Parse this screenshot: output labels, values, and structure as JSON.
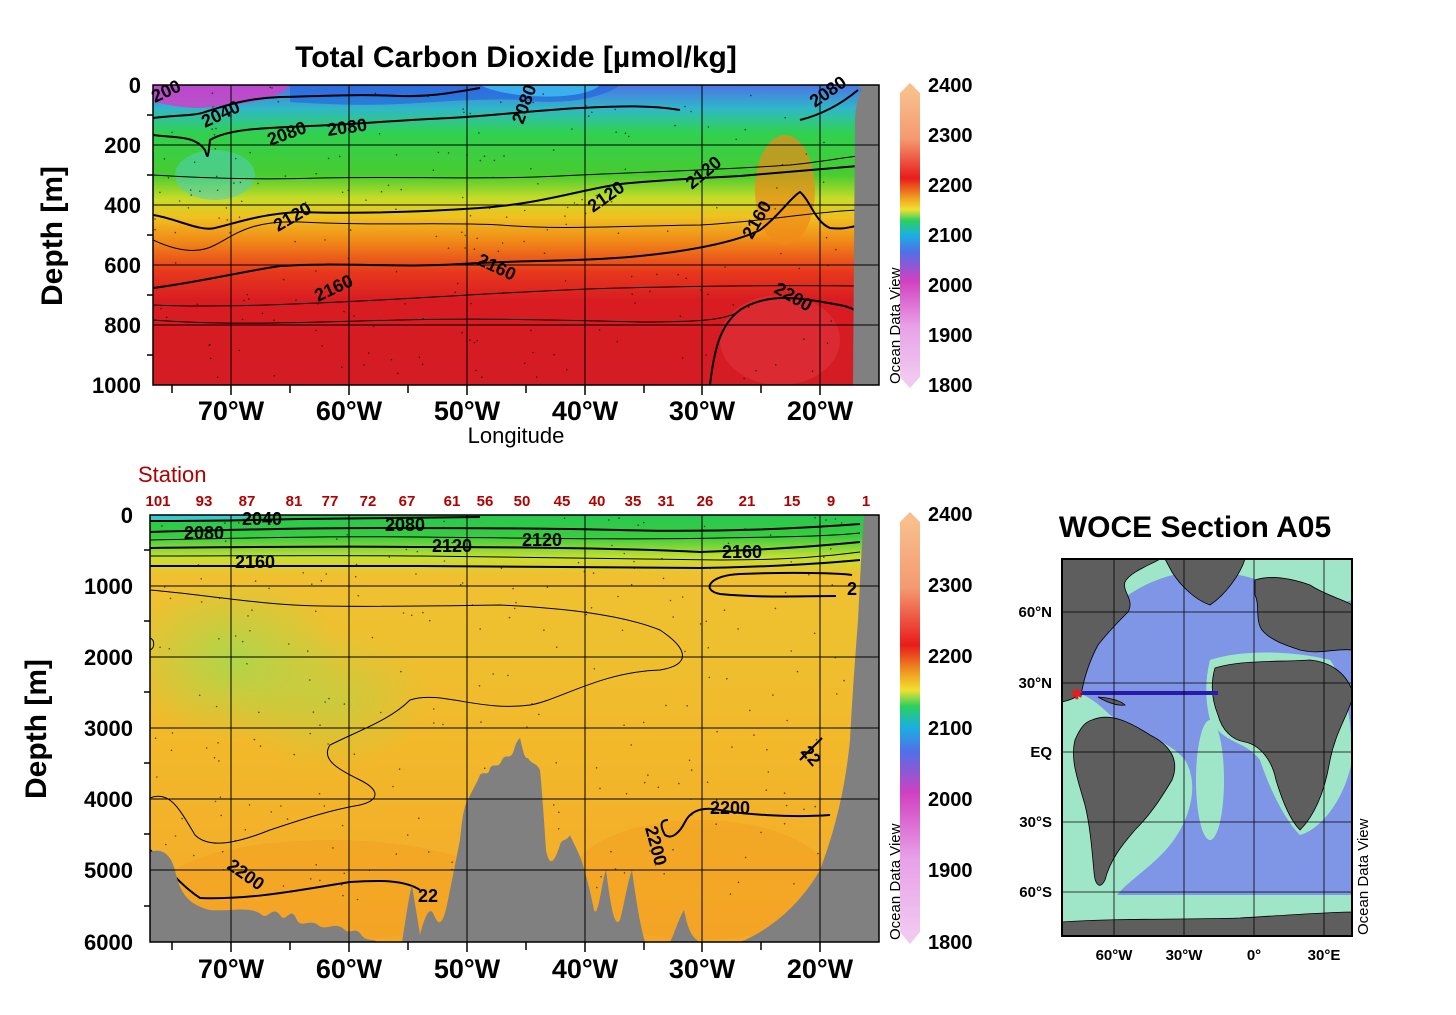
{
  "chart_data": [
    {
      "type": "heatmap",
      "title": "Total Carbon Dioxide [µmol/kg]",
      "xlabel": "Longitude",
      "ylabel": "Depth [m]",
      "x_ticks": [
        "70°W",
        "60°W",
        "50°W",
        "40°W",
        "30°W",
        "20°W"
      ],
      "y_ticks": [
        "0",
        "200",
        "400",
        "600",
        "800",
        "1000"
      ],
      "xlim": [
        -77.5,
        -15.5
      ],
      "ylim": [
        0,
        1000
      ],
      "colorbar": {
        "ticks": [
          "2400",
          "2300",
          "2200",
          "2100",
          "2000",
          "1900",
          "1800"
        ],
        "range": [
          1800,
          2400
        ],
        "label": "Ocean Data View"
      },
      "contours": [
        {
          "value": "2040",
          "depth": 100,
          "labels": [
            "2040"
          ]
        },
        {
          "value": "2080",
          "depth": 150,
          "labels": [
            "2080",
            "2080",
            "2080",
            "2080"
          ]
        },
        {
          "value": "2120",
          "depth": 320,
          "labels": [
            "2120",
            "2120",
            "2120"
          ]
        },
        {
          "value": "2160",
          "depth": 630,
          "labels": [
            "2160",
            "2160",
            "2160"
          ]
        },
        {
          "value": "2200",
          "depth": 720,
          "labels": [
            "2200"
          ]
        }
      ],
      "extra_labels": [
        "200"
      ]
    },
    {
      "type": "heatmap",
      "title": "",
      "xlabel": "",
      "ylabel": "Depth [m]",
      "x_ticks": [
        "70°W",
        "60°W",
        "50°W",
        "40°W",
        "30°W",
        "20°W"
      ],
      "y_ticks": [
        "0",
        "1000",
        "2000",
        "3000",
        "4000",
        "5000",
        "6000"
      ],
      "xlim": [
        -77.5,
        -15.5
      ],
      "ylim": [
        0,
        6000
      ],
      "station_label": "Station",
      "stations": [
        "101",
        "93",
        "87",
        "81",
        "77",
        "72",
        "67",
        "61",
        "56",
        "50",
        "45",
        "40",
        "35",
        "31",
        "26",
        "21",
        "15",
        "9",
        "1"
      ],
      "colorbar": {
        "ticks": [
          "2400",
          "2300",
          "2200",
          "2100",
          "2000",
          "1900",
          "1800"
        ],
        "range": [
          1800,
          2400
        ],
        "label": "Ocean Data View"
      },
      "contours": [
        {
          "value": "2040",
          "depth": 80,
          "labels": [
            "2040"
          ]
        },
        {
          "value": "2080",
          "depth": 200,
          "labels": [
            "2080",
            "2080"
          ]
        },
        {
          "value": "2120",
          "depth": 380,
          "labels": [
            "2120",
            "2120"
          ]
        },
        {
          "value": "2160",
          "depth": 620,
          "labels": [
            "2160",
            "2160"
          ]
        },
        {
          "value": "2200",
          "depth": 4500,
          "labels": [
            "2200",
            "2200",
            "2200",
            "22",
            "22",
            "2"
          ]
        }
      ]
    },
    {
      "type": "map",
      "title": "WOCE Section A05",
      "x_ticks": [
        "60°W",
        "30°W",
        "0°",
        "30°E"
      ],
      "y_ticks": [
        "60°N",
        "30°N",
        "EQ",
        "30°S",
        "60°S"
      ],
      "section_latitude": "24.5°N",
      "side_label": "Ocean Data View"
    }
  ],
  "colors": {
    "land": "#808080",
    "station_text": "#b00000",
    "section_line": "#2a1aa8",
    "start_marker": "#e02020",
    "map_ocean": "#7f95e6",
    "map_shelf": "#9fe6c8",
    "map_land": "#5e5e5e"
  }
}
